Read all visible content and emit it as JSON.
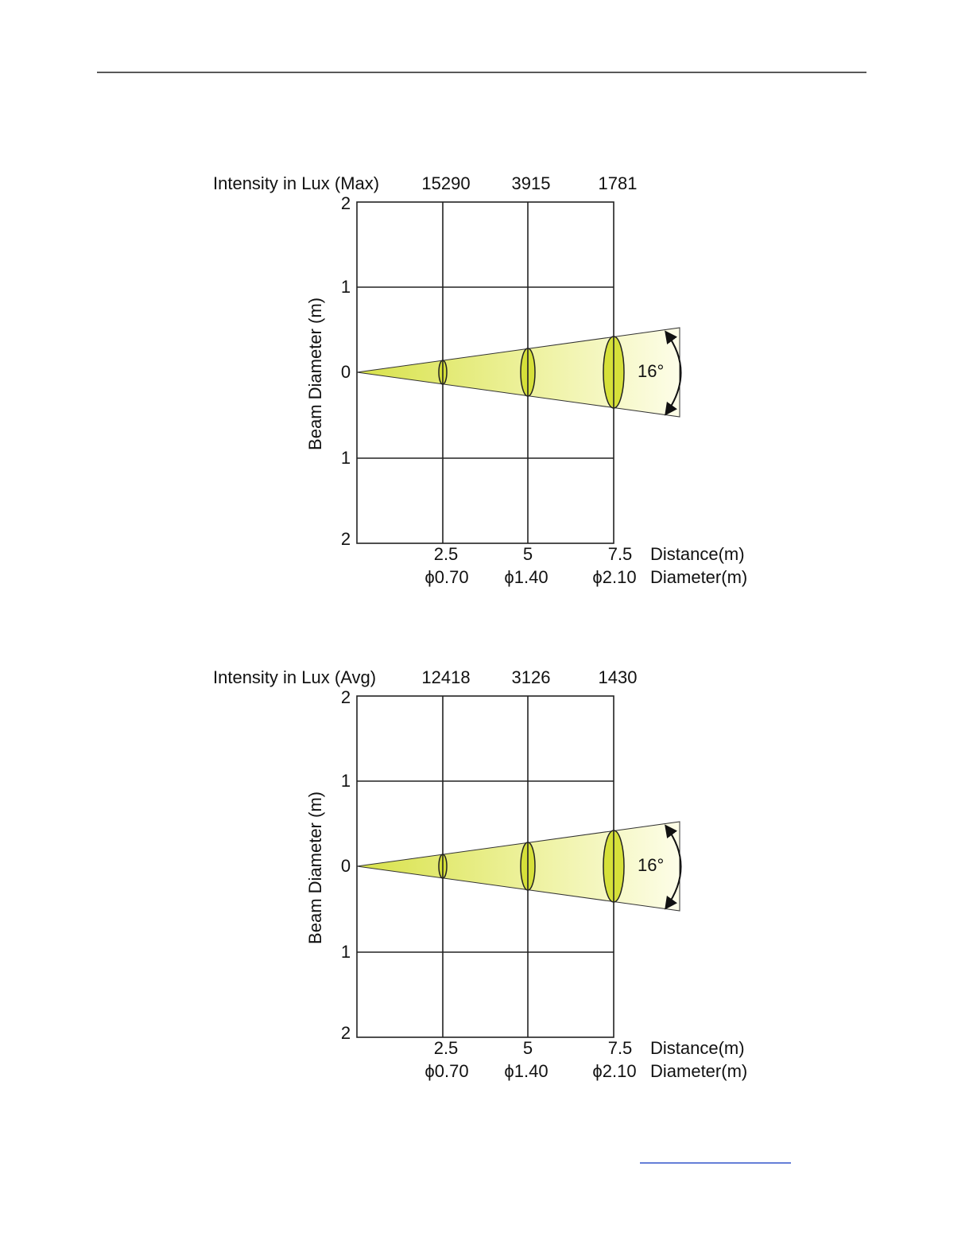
{
  "diagrams": [
    {
      "intensity_label": "Intensity in Lux (Max)",
      "intensities": [
        "15290",
        "3915",
        "1781"
      ],
      "y_axis_label": "Beam Diameter (m)",
      "y_ticks": [
        "2",
        "1",
        "0",
        "1",
        "2"
      ],
      "distances": [
        "2.5",
        "5",
        "7.5"
      ],
      "distance_label": "Distance(m)",
      "diameters": [
        "ϕ0.70",
        "ϕ1.40",
        "ϕ2.10"
      ],
      "diameter_label": "Diameter(m)",
      "angle": "16°"
    },
    {
      "intensity_label": "Intensity in Lux (Avg)",
      "intensities": [
        "12418",
        "3126",
        "1430"
      ],
      "y_axis_label": "Beam Diameter (m)",
      "y_ticks": [
        "2",
        "1",
        "0",
        "1",
        "2"
      ],
      "distances": [
        "2.5",
        "5",
        "7.5"
      ],
      "distance_label": "Distance(m)",
      "diameters": [
        "ϕ0.70",
        "ϕ1.40",
        "ϕ2.10"
      ],
      "diameter_label": "Diameter(m)",
      "angle": "16°"
    }
  ]
}
